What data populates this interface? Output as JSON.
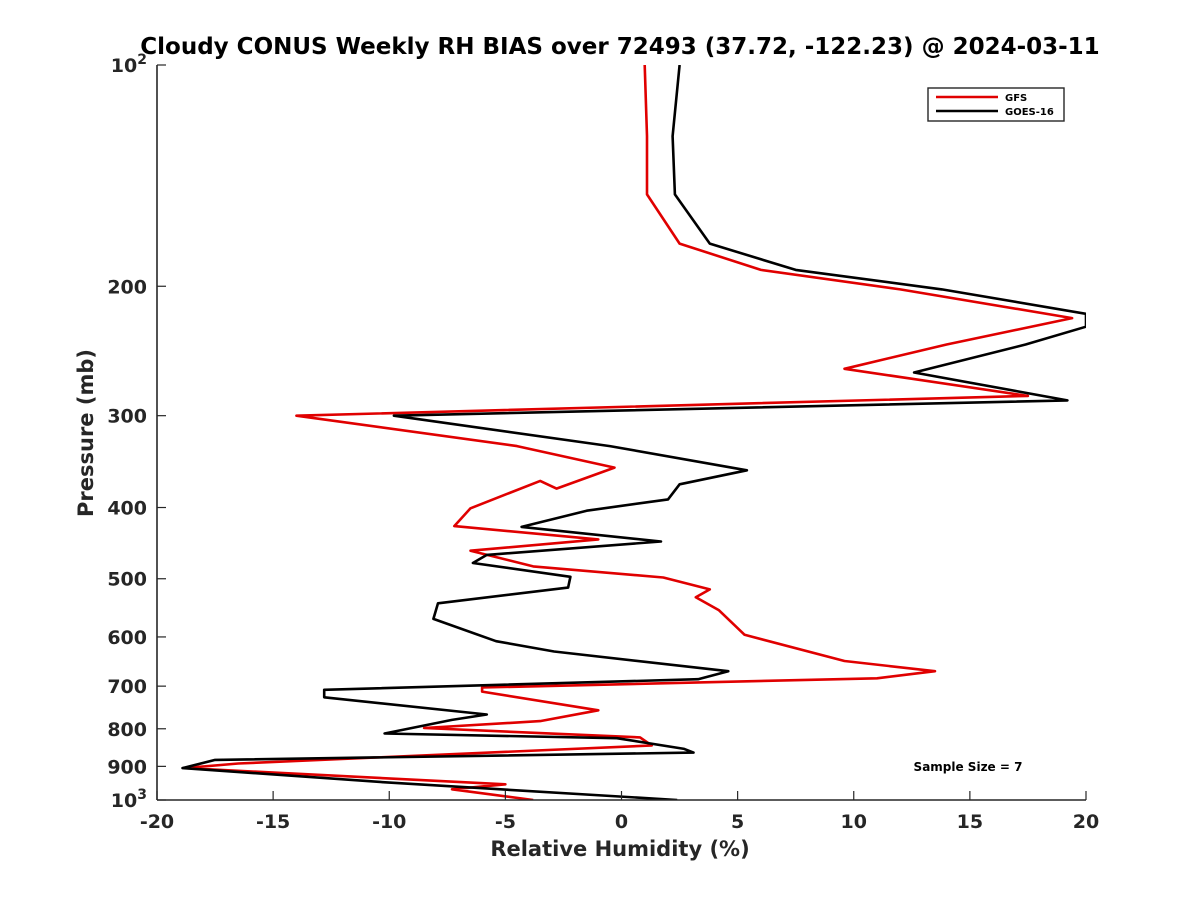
{
  "chart_data": {
    "type": "line",
    "title": "Cloudy CONUS Weekly RH BIAS over 72493 (37.72, -122.23) @ 2024-03-11",
    "xlabel": "Relative Humidity (%)",
    "ylabel": "Pressure (mb)",
    "xlim": [
      -20,
      20
    ],
    "ylim": [
      100,
      1000
    ],
    "yscale": "log",
    "y_reversed": true,
    "xticks": [
      {
        "value": -20,
        "label": "-20"
      },
      {
        "value": -15,
        "label": "-15"
      },
      {
        "value": -10,
        "label": "-10"
      },
      {
        "value": -5,
        "label": "-5"
      },
      {
        "value": 0,
        "label": "0"
      },
      {
        "value": 5,
        "label": "5"
      },
      {
        "value": 10,
        "label": "10"
      },
      {
        "value": 15,
        "label": "15"
      },
      {
        "value": 20,
        "label": "20"
      }
    ],
    "yticks": [
      {
        "value": 100,
        "base": "10",
        "exp": "2"
      },
      {
        "value": 200,
        "base": "200",
        "exp": ""
      },
      {
        "value": 300,
        "base": "300",
        "exp": ""
      },
      {
        "value": 400,
        "base": "400",
        "exp": ""
      },
      {
        "value": 500,
        "base": "500",
        "exp": ""
      },
      {
        "value": 600,
        "base": "600",
        "exp": ""
      },
      {
        "value": 700,
        "base": "700",
        "exp": ""
      },
      {
        "value": 800,
        "base": "800",
        "exp": ""
      },
      {
        "value": 900,
        "base": "900",
        "exp": ""
      },
      {
        "value": 1000,
        "base": "10",
        "exp": "3"
      }
    ],
    "grid": false,
    "legend_position": "top-right",
    "annotation": "Sample Size = 7",
    "series": [
      {
        "name": "GFS",
        "color": "#e00000",
        "points": [
          [
            1.0,
            100
          ],
          [
            1.1,
            125
          ],
          [
            1.1,
            150
          ],
          [
            2.5,
            175
          ],
          [
            6.0,
            190
          ],
          [
            12.0,
            202
          ],
          [
            19.4,
            221
          ],
          [
            14.0,
            240
          ],
          [
            9.6,
            259
          ],
          [
            17.5,
            282
          ],
          [
            -14.0,
            300
          ],
          [
            -4.5,
            330
          ],
          [
            -0.3,
            353
          ],
          [
            -2.8,
            377
          ],
          [
            -3.5,
            368
          ],
          [
            -6.5,
            401
          ],
          [
            -7.2,
            424
          ],
          [
            -1.0,
            442
          ],
          [
            -6.5,
            458
          ],
          [
            -3.8,
            481
          ],
          [
            1.8,
            498
          ],
          [
            3.8,
            517
          ],
          [
            3.2,
            530
          ],
          [
            4.2,
            552
          ],
          [
            5.3,
            596
          ],
          [
            9.6,
            647
          ],
          [
            13.5,
            668
          ],
          [
            11.0,
            683
          ],
          [
            -6.0,
            703
          ],
          [
            -6.0,
            712
          ],
          [
            -1.0,
            755
          ],
          [
            -3.5,
            781
          ],
          [
            -8.5,
            798
          ],
          [
            0.8,
            822
          ],
          [
            1.3,
            843
          ],
          [
            -16.5,
            892
          ],
          [
            -18.8,
            905
          ],
          [
            -5.0,
            952
          ],
          [
            -7.3,
            967
          ],
          [
            -3.8,
            1000
          ]
        ]
      },
      {
        "name": "GOES-16",
        "color": "#000000",
        "points": [
          [
            2.5,
            100
          ],
          [
            2.2,
            125
          ],
          [
            2.3,
            150
          ],
          [
            3.8,
            175
          ],
          [
            7.5,
            190
          ],
          [
            13.8,
            202
          ],
          [
            20.0,
            218
          ],
          [
            20.0,
            227
          ],
          [
            17.4,
            240
          ],
          [
            12.6,
            262
          ],
          [
            19.2,
            286
          ],
          [
            -9.8,
            300
          ],
          [
            -0.5,
            330
          ],
          [
            5.4,
            356
          ],
          [
            2.5,
            372
          ],
          [
            2.0,
            390
          ],
          [
            -1.5,
            404
          ],
          [
            -4.3,
            425
          ],
          [
            1.7,
            445
          ],
          [
            -5.8,
            464
          ],
          [
            -6.4,
            476
          ],
          [
            -2.2,
            497
          ],
          [
            -2.3,
            514
          ],
          [
            -7.9,
            540
          ],
          [
            -8.1,
            567
          ],
          [
            -5.4,
            608
          ],
          [
            -2.9,
            628
          ],
          [
            4.6,
            668
          ],
          [
            3.3,
            685
          ],
          [
            -12.8,
            708
          ],
          [
            -12.8,
            725
          ],
          [
            -5.8,
            765
          ],
          [
            -7.3,
            778
          ],
          [
            -10.2,
            812
          ],
          [
            -0.2,
            824
          ],
          [
            2.7,
            852
          ],
          [
            3.1,
            862
          ],
          [
            -17.5,
            882
          ],
          [
            -18.9,
            905
          ],
          [
            -10.0,
            947
          ],
          [
            2.4,
            1000
          ]
        ]
      }
    ]
  }
}
